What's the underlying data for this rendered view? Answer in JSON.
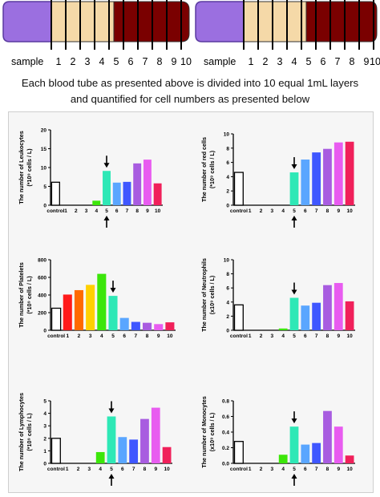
{
  "tubes": {
    "sample_label": "sample",
    "layer_numbers": [
      "1",
      "2",
      "3",
      "4",
      "5",
      "6",
      "7",
      "8",
      "9",
      "10"
    ],
    "colors": {
      "cap": "#9b6fe0",
      "serum": "#f5d9a8",
      "red_cells": "#7a0000"
    }
  },
  "caption": {
    "line1": "Each blood tube as presented above is divided into 10 equal 1mL layers",
    "line2": "and quantified for cell numbers as presented below"
  },
  "bar_colors": [
    "#ffffff",
    "#ff1a1a",
    "#ff6a00",
    "#ffd000",
    "#3ce60a",
    "#2ee8b6",
    "#5aa6ff",
    "#3f57ff",
    "#a85ce0",
    "#e85cf0",
    "#f0205a"
  ],
  "x_labels": [
    "control",
    "1",
    "2",
    "3",
    "4",
    "5",
    "6",
    "7",
    "8",
    "9",
    "10"
  ],
  "chart_data": [
    {
      "type": "bar",
      "ylabel_line1": "The number of Leukocytes",
      "ylabel_line2": "(*10⁹ cells / L)",
      "categories": [
        "control",
        "1",
        "2",
        "3",
        "4",
        "5",
        "6",
        "7",
        "8",
        "9",
        "10"
      ],
      "values": [
        6.1,
        0,
        0,
        0,
        1.2,
        9.1,
        6.0,
        6.2,
        11.1,
        12.1,
        5.8
      ],
      "ylim": [
        0,
        20
      ],
      "yticks": [
        "0",
        "5",
        "10",
        "15",
        "20"
      ],
      "arrow_down": true,
      "arrow_up": true
    },
    {
      "type": "bar",
      "ylabel_line1": "The number of  red cells",
      "ylabel_line2": "(*10⁹ cells / L)",
      "categories": [
        "control",
        "1",
        "2",
        "3",
        "4",
        "5",
        "6",
        "7",
        "8",
        "9",
        "10"
      ],
      "values": [
        4.6,
        0,
        0,
        0,
        0,
        4.6,
        6.4,
        7.4,
        7.9,
        8.8,
        8.9
      ],
      "ylim": [
        0,
        10
      ],
      "yticks": [
        "0",
        "2",
        "4",
        "6",
        "8",
        "10"
      ],
      "arrow_down": true,
      "arrow_up": true
    },
    {
      "type": "bar",
      "ylabel_line1": "The number of  Platelets",
      "ylabel_line2": "(*10⁹ cells / L)",
      "categories": [
        "control",
        "1",
        "2",
        "3",
        "4",
        "5",
        "6",
        "7",
        "8",
        "9",
        "10"
      ],
      "values": [
        250,
        405,
        455,
        515,
        640,
        390,
        140,
        95,
        85,
        70,
        90
      ],
      "ylim": [
        0,
        800
      ],
      "yticks": [
        "0",
        "200",
        "400",
        "600",
        "800"
      ],
      "arrow_down": true,
      "arrow_up": false
    },
    {
      "type": "bar",
      "ylabel_line1": "The number of Neutrophils",
      "ylabel_line2": "(x10⁹ cells / L)",
      "categories": [
        "control",
        "1",
        "2",
        "3",
        "4",
        "5",
        "6",
        "7",
        "8",
        "9",
        "10"
      ],
      "values": [
        3.6,
        0,
        0,
        0,
        0.25,
        4.6,
        3.5,
        3.9,
        6.4,
        6.7,
        4.1
      ],
      "ylim": [
        0,
        10
      ],
      "yticks": [
        "0",
        "2",
        "4",
        "6",
        "8",
        "10"
      ],
      "arrow_down": true,
      "arrow_up": false
    },
    {
      "type": "bar",
      "ylabel_line1": "The number of Lymphocytes",
      "ylabel_line2": "(*10⁹ cells / L)",
      "categories": [
        "control",
        "1",
        "2",
        "3",
        "4",
        "5",
        "6",
        "7",
        "8",
        "9",
        "10"
      ],
      "values": [
        2.0,
        0,
        0,
        0,
        0.9,
        3.75,
        2.1,
        1.9,
        3.55,
        4.45,
        1.3
      ],
      "ylim": [
        0,
        5
      ],
      "yticks": [
        "0",
        "1",
        "2",
        "3",
        "4",
        "5"
      ],
      "arrow_down": true,
      "arrow_up": true
    },
    {
      "type": "bar",
      "ylabel_line1": "The number of Monocytes",
      "ylabel_line2": "(x10⁹ cells / L)",
      "categories": [
        "control",
        "1",
        "2",
        "3",
        "4",
        "5",
        "6",
        "7",
        "8",
        "9",
        "10"
      ],
      "values": [
        0.28,
        0,
        0,
        0,
        0.11,
        0.47,
        0.24,
        0.26,
        0.67,
        0.47,
        0.1
      ],
      "ylim": [
        0,
        0.8
      ],
      "yticks": [
        "0.0",
        "0.2",
        "0.4",
        "0.6",
        "0.8"
      ],
      "arrow_down": true,
      "arrow_up": true
    }
  ]
}
